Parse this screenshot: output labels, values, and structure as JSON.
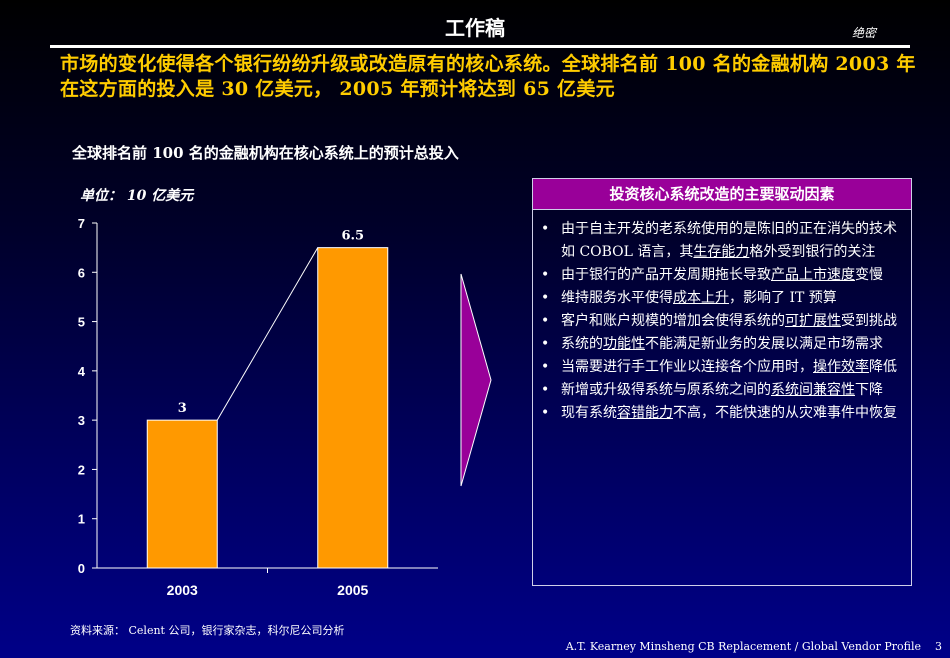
{
  "header": {
    "draft_label": "工作稿",
    "confidential_label": "绝密"
  },
  "headline": "市场的变化使得各个银行纷纷升级或改造原有的核心系统。全球排名前 100 名的金融机构 2003 年在这方面的投入是 30 亿美元， 2005 年预计将达到 65 亿美元",
  "chart_data": {
    "type": "bar",
    "title": "全球排名前 100 名的金融机构在核心系统上的预计总投入",
    "unit_label": "单位： 10 亿美元",
    "categories": [
      "2003",
      "2005"
    ],
    "values": [
      3,
      6.5
    ],
    "value_labels": [
      "3",
      "6.5"
    ],
    "ylim": [
      0,
      7
    ],
    "yticks": [
      "0",
      "1",
      "2",
      "3",
      "4",
      "5",
      "6",
      "7"
    ],
    "bar_color": "#ff9900",
    "connector_line": true,
    "grid": false
  },
  "panel": {
    "title": "投资核心系统改造的主要驱动因素",
    "header_color": "#990099",
    "items": [
      {
        "pre": "由于自主开发的老系统使用的是陈旧的正在消失的技术如 COBOL 语言，其",
        "em": "生存能力",
        "post": "格外受到银行的关注"
      },
      {
        "pre": "由于银行的产品开发周期拖长导致",
        "em": "产品上市速度",
        "post": "变慢"
      },
      {
        "pre": "维持服务水平使得",
        "em": "成本上升",
        "post": "，影响了 IT 预算"
      },
      {
        "pre": "客户和账户规模的增加会使得系统的",
        "em": "可扩展性",
        "post": "受到挑战"
      },
      {
        "pre": "系统的",
        "em": "功能性",
        "post": "不能满足新业务的发展以满足市场需求"
      },
      {
        "pre": "当需要进行手工作业以连接各个应用时，",
        "em": "操作效率",
        "post": "降低"
      },
      {
        "pre": "新增或升级得系统与原系统之间的",
        "em": "系统间兼容性",
        "post": "下降"
      },
      {
        "pre": "现有系统",
        "em": "容错能力",
        "post": "不高，不能快速的从灾难事件中恢复"
      }
    ]
  },
  "source_note": "资料来源： Celent 公司，银行家杂志，科尔尼公司分析",
  "footer": {
    "text": "A.T. Kearney   Minsheng CB Replacement / Global Vendor Profile",
    "page": "3"
  }
}
